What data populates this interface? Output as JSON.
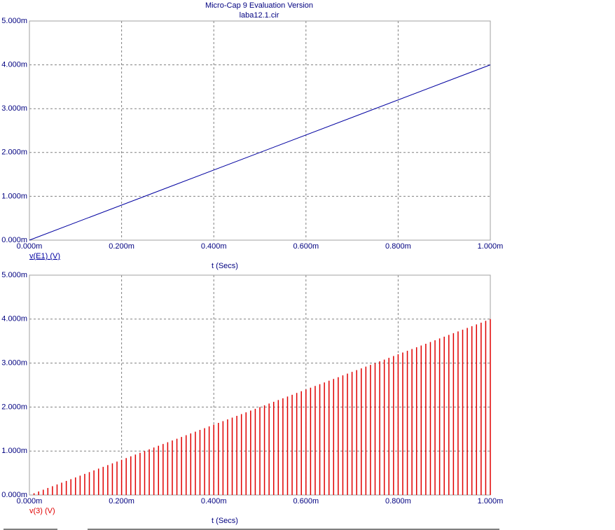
{
  "chart_data": [
    {
      "type": "line",
      "title": "Micro-Cap 9 Evaluation Version",
      "subtitle": "laba12.1.cir",
      "xlabel": "t (Secs)",
      "x": [
        0,
        1
      ],
      "series": [
        {
          "name": "v(E1) (V)",
          "color": "#0000a0",
          "values": [
            0,
            4
          ]
        }
      ],
      "xlim": [
        0,
        1
      ],
      "ylim": [
        0,
        5
      ],
      "xticks": [
        {
          "value": 0,
          "label": "0.000m"
        },
        {
          "value": 0.2,
          "label": "0.200m"
        },
        {
          "value": 0.4,
          "label": "0.400m"
        },
        {
          "value": 0.6,
          "label": "0.600m"
        },
        {
          "value": 0.8,
          "label": "0.800m"
        },
        {
          "value": 1,
          "label": "1.000m"
        }
      ],
      "yticks": [
        {
          "value": 0,
          "label": "0.000m"
        },
        {
          "value": 1,
          "label": "1.000m"
        },
        {
          "value": 2,
          "label": "2.000m"
        },
        {
          "value": 3,
          "label": "3.000m"
        },
        {
          "value": 4,
          "label": "4.000m"
        },
        {
          "value": 5,
          "label": "5.000m"
        }
      ],
      "grid": true
    },
    {
      "type": "stem",
      "xlabel": "t (Secs)",
      "x": [
        0.01,
        0.02,
        0.03,
        0.04,
        0.05,
        0.06,
        0.07,
        0.08,
        0.09,
        0.1,
        0.11,
        0.12,
        0.13,
        0.14,
        0.15,
        0.16,
        0.17,
        0.18,
        0.19,
        0.2,
        0.21,
        0.22,
        0.23,
        0.24,
        0.25,
        0.26,
        0.27,
        0.28,
        0.29,
        0.3,
        0.31,
        0.32,
        0.33,
        0.34,
        0.35,
        0.36,
        0.37,
        0.38,
        0.39,
        0.4,
        0.41,
        0.42,
        0.43,
        0.44,
        0.45,
        0.46,
        0.47,
        0.48,
        0.49,
        0.5,
        0.51,
        0.52,
        0.53,
        0.54,
        0.55,
        0.56,
        0.57,
        0.58,
        0.59,
        0.6,
        0.61,
        0.62,
        0.63,
        0.64,
        0.65,
        0.66,
        0.67,
        0.68,
        0.69,
        0.7,
        0.71,
        0.72,
        0.73,
        0.74,
        0.75,
        0.76,
        0.77,
        0.78,
        0.79,
        0.8,
        0.81,
        0.82,
        0.83,
        0.84,
        0.85,
        0.86,
        0.87,
        0.88,
        0.89,
        0.9,
        0.91,
        0.92,
        0.93,
        0.94,
        0.95,
        0.96,
        0.97,
        0.98,
        0.99,
        1
      ],
      "series": [
        {
          "name": "v(3) (V)",
          "color": "#e00000",
          "values": [
            0.04,
            0.08,
            0.12,
            0.16,
            0.2,
            0.24,
            0.28,
            0.32,
            0.36,
            0.4,
            0.44,
            0.48,
            0.52,
            0.56,
            0.6,
            0.64,
            0.68,
            0.72,
            0.76,
            0.8,
            0.84,
            0.88,
            0.92,
            0.96,
            1,
            1.04,
            1.08,
            1.12,
            1.16,
            1.2,
            1.24,
            1.28,
            1.32,
            1.36,
            1.4,
            1.44,
            1.48,
            1.52,
            1.56,
            1.6,
            1.64,
            1.68,
            1.72,
            1.76,
            1.8,
            1.84,
            1.88,
            1.92,
            1.96,
            2,
            2.04,
            2.08,
            2.12,
            2.16,
            2.2,
            2.24,
            2.28,
            2.32,
            2.36,
            2.4,
            2.44,
            2.48,
            2.52,
            2.56,
            2.6,
            2.64,
            2.68,
            2.72,
            2.76,
            2.8,
            2.84,
            2.88,
            2.92,
            2.96,
            3,
            3.04,
            3.08,
            3.12,
            3.16,
            3.2,
            3.24,
            3.28,
            3.32,
            3.36,
            3.4,
            3.44,
            3.48,
            3.52,
            3.56,
            3.6,
            3.64,
            3.68,
            3.72,
            3.76,
            3.8,
            3.84,
            3.88,
            3.92,
            3.96,
            4
          ]
        }
      ],
      "xlim": [
        0,
        1
      ],
      "ylim": [
        0,
        5
      ],
      "xticks": [
        {
          "value": 0,
          "label": "0.000m"
        },
        {
          "value": 0.2,
          "label": "0.200m"
        },
        {
          "value": 0.4,
          "label": "0.400m"
        },
        {
          "value": 0.6,
          "label": "0.600m"
        },
        {
          "value": 0.8,
          "label": "0.800m"
        },
        {
          "value": 1,
          "label": "1.000m"
        }
      ],
      "yticks": [
        {
          "value": 0,
          "label": "0.000m"
        },
        {
          "value": 1,
          "label": "1.000m"
        },
        {
          "value": 2,
          "label": "2.000m"
        },
        {
          "value": 3,
          "label": "3.000m"
        },
        {
          "value": 4,
          "label": "4.000m"
        },
        {
          "value": 5,
          "label": "5.000m"
        }
      ],
      "grid": true
    }
  ]
}
